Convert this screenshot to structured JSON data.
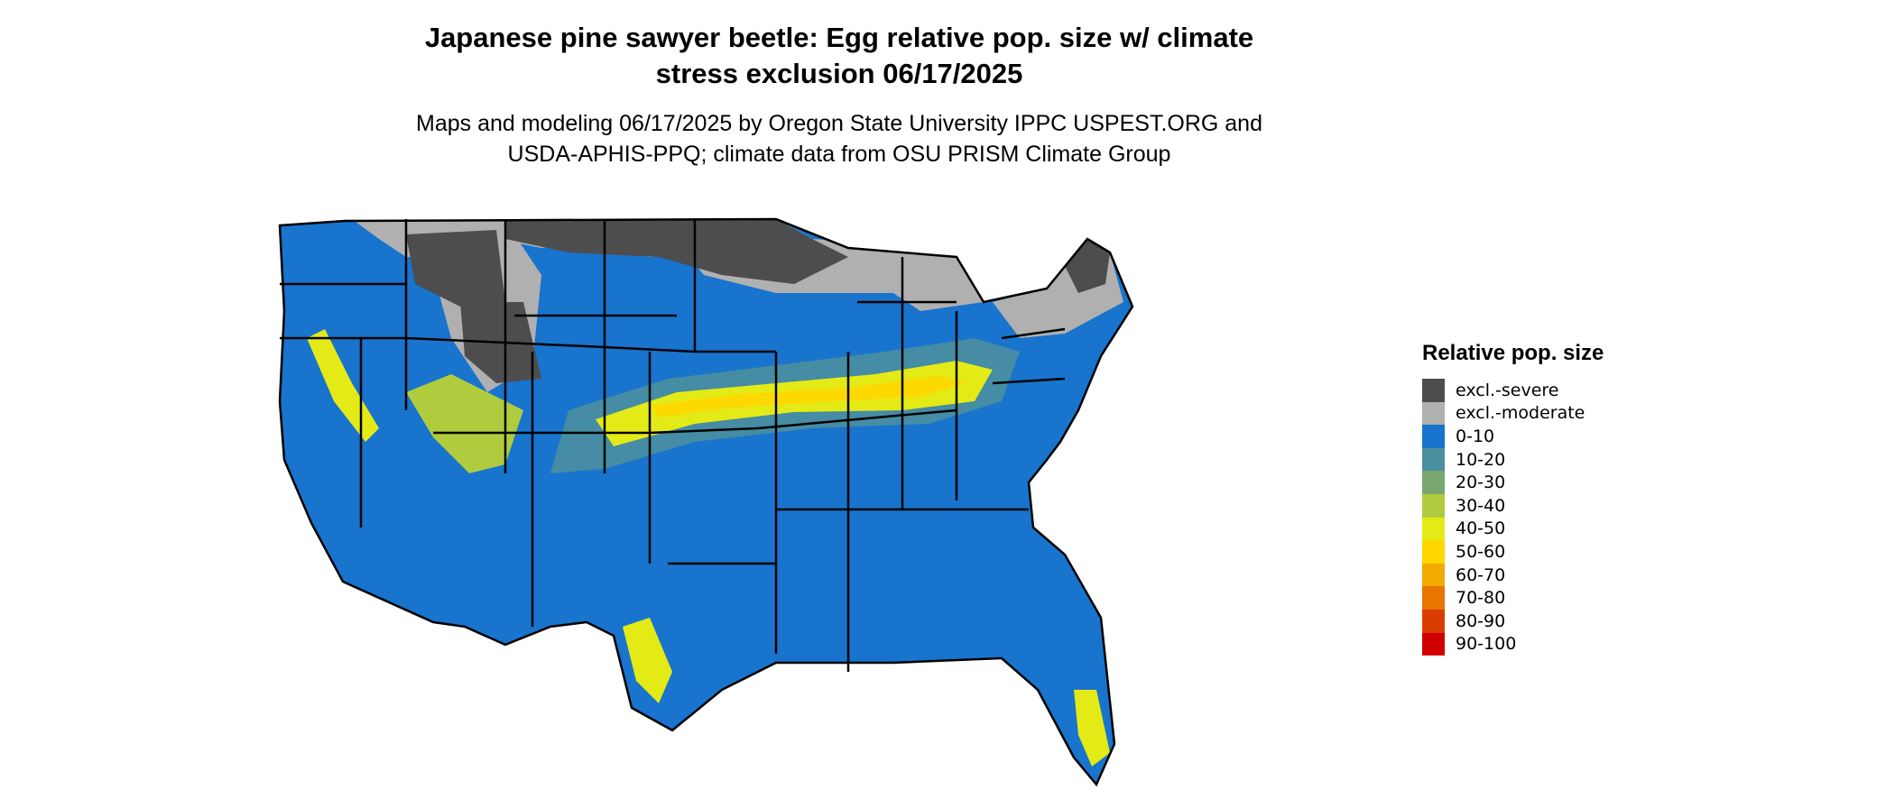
{
  "title": {
    "line1": "Japanese pine sawyer beetle: Egg relative pop. size w/ climate",
    "line2": "stress exclusion 06/17/2025"
  },
  "subtitle": {
    "line1": "Maps and modeling 06/17/2025 by Oregon State University IPPC USPEST.ORG and",
    "line2": "USDA-APHIS-PPQ; climate data from OSU PRISM Climate Group"
  },
  "legend": {
    "title": "Relative pop. size",
    "items": [
      {
        "label": "excl.-severe",
        "color": "#4d4d4d"
      },
      {
        "label": "excl.-moderate",
        "color": "#b0b0b0"
      },
      {
        "label": "0-10",
        "color": "#1874cd"
      },
      {
        "label": "10-20",
        "color": "#4a8fa0"
      },
      {
        "label": "20-30",
        "color": "#79a76e"
      },
      {
        "label": "30-40",
        "color": "#b0cc3e"
      },
      {
        "label": "40-50",
        "color": "#e4ea16"
      },
      {
        "label": "50-60",
        "color": "#ffd700"
      },
      {
        "label": "60-70",
        "color": "#f2a900"
      },
      {
        "label": "70-80",
        "color": "#e77500"
      },
      {
        "label": "80-90",
        "color": "#d93e00"
      },
      {
        "label": "90-100",
        "color": "#d10000"
      }
    ]
  }
}
